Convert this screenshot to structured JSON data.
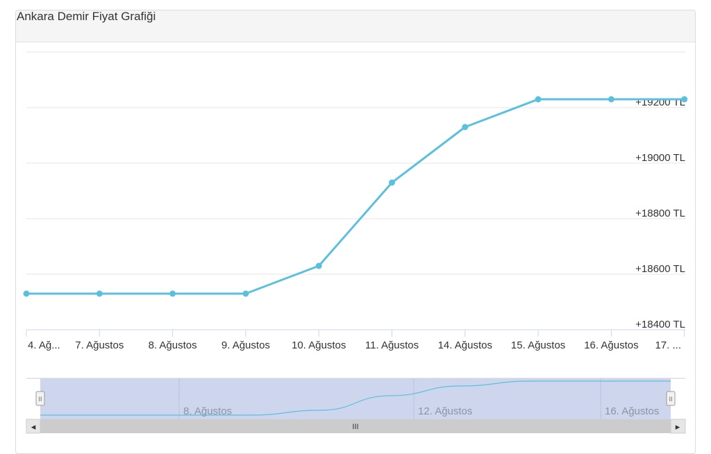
{
  "panel": {
    "title": "Ankara Demir Fiyat Grafiği"
  },
  "colors": {
    "series": "#5bc0de",
    "navigator_fill": "#cdd6ec",
    "grid": "#e6e6e6",
    "axis": "#ccd6eb"
  },
  "chart_data": {
    "type": "line",
    "title": "",
    "xlabel": "",
    "ylabel": "",
    "x": [
      "4. Ağustos",
      "7. Ağustos",
      "8. Ağustos",
      "9. Ağustos",
      "10. Ağustos",
      "11. Ağustos",
      "14. Ağustos",
      "15. Ağustos",
      "16. Ağustos",
      "17. Ağustos"
    ],
    "x_tick_labels": [
      "4. Ağ...",
      "7. Ağustos",
      "8. Ağustos",
      "9. Ağustos",
      "10. Ağustos",
      "11. Ağustos",
      "14. Ağustos",
      "15. Ağustos",
      "16. Ağustos",
      "17. ..."
    ],
    "series": [
      {
        "values": [
          18530,
          18530,
          18530,
          18530,
          18630,
          18930,
          19130,
          19230,
          19230,
          19230
        ]
      }
    ],
    "y_ticks": [
      18400,
      18600,
      18800,
      19000,
      19200
    ],
    "y_tick_labels": [
      "+18400 TL",
      "+18600 TL",
      "+18800 TL",
      "+19000 TL",
      "+19200 TL"
    ],
    "ylim": [
      18400,
      19400
    ],
    "grid": true,
    "navigator": {
      "labels": [
        "8. Ağustos",
        "12. Ağustos",
        "16. Ağustos"
      ],
      "scrollbar_grip": "III",
      "left_arrow": "◂",
      "right_arrow": "▸",
      "handle_glyph": "II"
    }
  }
}
